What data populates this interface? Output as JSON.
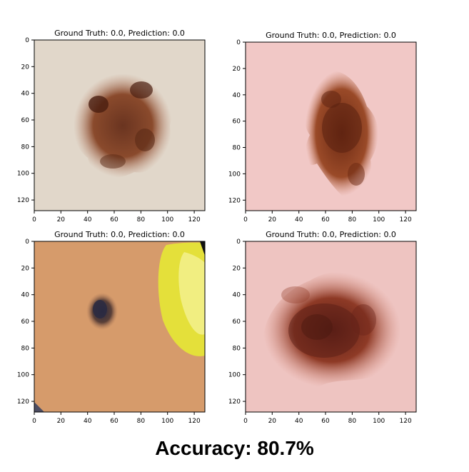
{
  "panels": [
    {
      "title": "Ground Truth: 0.0, Prediction: 0.0",
      "x_ticks": [
        "0",
        "20",
        "40",
        "60",
        "80",
        "100",
        "120"
      ],
      "y_ticks": [
        "0",
        "20",
        "40",
        "60",
        "80",
        "100",
        "120"
      ],
      "image": "skin lesion: irregular brown mole on pale beige skin",
      "colors": {
        "skin": "#e6dcd0",
        "lesion_dark": "#5a2a18",
        "lesion_mid": "#9b5a3a"
      }
    },
    {
      "title": "Ground Truth: 0.0, Prediction: 0.0",
      "x_ticks": [
        "0",
        "20",
        "40",
        "60",
        "80",
        "100",
        "120"
      ],
      "y_ticks": [
        "0",
        "20",
        "40",
        "60",
        "80",
        "100",
        "120"
      ],
      "image": "skin lesion: speckled brown mole on pink skin",
      "colors": {
        "skin": "#f2c7c4",
        "lesion_dark": "#6e2a14",
        "lesion_mid": "#a8502e"
      }
    },
    {
      "title": "Ground Truth: 0.0, Prediction: 0.0",
      "x_ticks": [
        "0",
        "20",
        "40",
        "60",
        "80",
        "100",
        "120"
      ],
      "y_ticks": [
        "0",
        "20",
        "40",
        "60",
        "80",
        "100",
        "120"
      ],
      "image": "skin lesion: small dark mole on tan skin with yellow ruler disc",
      "colors": {
        "skin": "#d79c6c",
        "lesion_dark": "#2e2a3a",
        "lesion_mid": "#6a4a40",
        "disc": "#e6e23a"
      }
    },
    {
      "title": "Ground Truth: 0.0, Prediction: 0.0",
      "x_ticks": [
        "0",
        "20",
        "40",
        "60",
        "80",
        "100",
        "120"
      ],
      "y_ticks": [
        "0",
        "20",
        "40",
        "60",
        "80",
        "100",
        "120"
      ],
      "image": "skin lesion: large diffuse brown lesion on pink skin",
      "colors": {
        "skin": "#edc3c0",
        "lesion_dark": "#5e1e14",
        "lesion_mid": "#a0442a"
      }
    }
  ],
  "accuracy_label": "Accuracy: 80.7%"
}
